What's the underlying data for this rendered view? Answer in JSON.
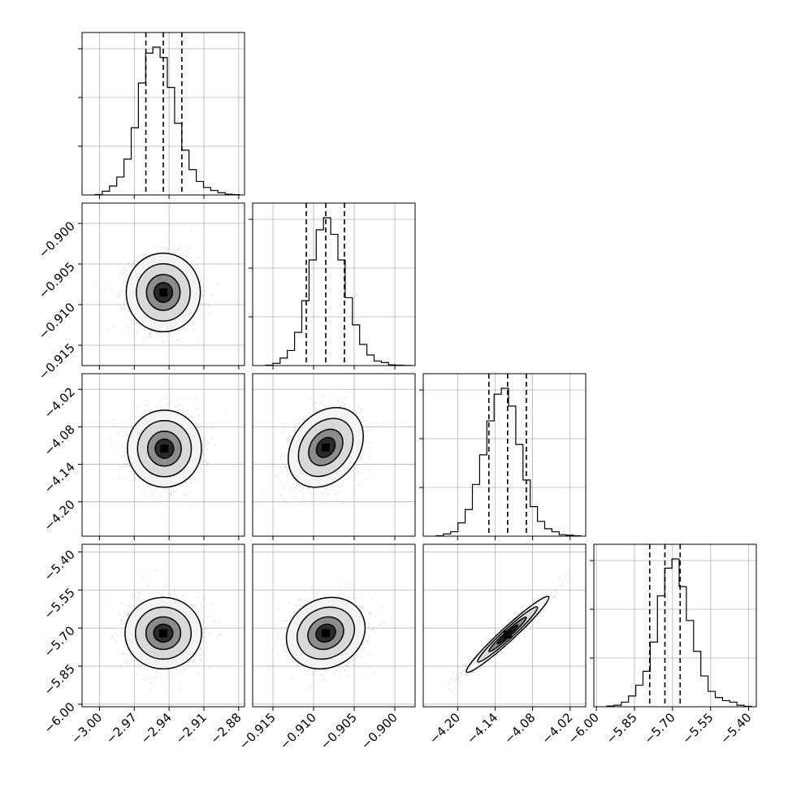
{
  "chart_data": {
    "type": "corner",
    "title": "",
    "grid": true,
    "parameters": [
      {
        "range": [
          -3.015,
          -2.875
        ],
        "ticks": [
          -3.0,
          -2.97,
          -2.94,
          -2.91,
          -2.88
        ],
        "tick_labels": [
          "−3.00",
          "−2.97",
          "−2.94",
          "−2.91",
          "−2.88"
        ],
        "quantiles": [
          -2.96,
          -2.945,
          -2.929
        ],
        "hist_counts": [
          0.3,
          2.5,
          6,
          12,
          24,
          45,
          75,
          95,
          99,
          92,
          72,
          48,
          30,
          17,
          9,
          5,
          3,
          1.5,
          0.5,
          0.2
        ]
      },
      {
        "range": [
          -0.9175,
          -0.8975
        ],
        "ticks": [
          -0.915,
          -0.91,
          -0.905,
          -0.9
        ],
        "tick_labels": [
          "−0.915",
          "−0.910",
          "−0.905",
          "−0.900"
        ],
        "quantiles": [
          -0.9109,
          -0.9085,
          -0.9062
        ],
        "hist_counts": [
          0.3,
          1.5,
          5,
          10,
          22,
          43,
          70,
          90,
          98,
          87,
          70,
          45,
          27,
          14,
          7,
          3,
          2,
          0.5,
          0.3,
          0.1
        ]
      },
      {
        "range": [
          -4.255,
          -3.995
        ],
        "ticks": [
          -4.2,
          -4.14,
          -4.08,
          -4.02
        ],
        "tick_labels": [
          "−4.20",
          "−4.14",
          "−4.08",
          "−4.02"
        ],
        "quantiles": [
          -4.15,
          -4.12,
          -4.09
        ],
        "hist_counts": [
          0.3,
          1.5,
          3,
          9,
          18,
          35,
          55,
          78,
          96,
          100,
          88,
          62,
          38,
          20,
          10,
          5,
          3,
          1,
          0.6,
          0.3
        ]
      },
      {
        "range": [
          -6.01,
          -5.37
        ],
        "ticks": [
          -6.0,
          -5.85,
          -5.7,
          -5.55,
          -5.4
        ],
        "tick_labels": [
          "−6.00",
          "−5.85",
          "−5.70",
          "−5.55",
          "−5.40"
        ],
        "quantiles": [
          -5.79,
          -5.73,
          -5.67
        ],
        "hist_counts": [
          0.5,
          1,
          3,
          7,
          14,
          23,
          42,
          72,
          90,
          96,
          78,
          56,
          36,
          20,
          10,
          6,
          4,
          3,
          1,
          0.3
        ]
      }
    ],
    "panels": [
      {
        "row": 1,
        "col": 0,
        "center": [
          -2.945,
          -0.9085
        ],
        "sigma": [
          0.0145,
          0.0022
        ],
        "corr": 0.0
      },
      {
        "row": 2,
        "col": 0,
        "center": [
          -2.944,
          -4.115
        ],
        "sigma": [
          0.0145,
          0.028
        ],
        "corr": 0.0
      },
      {
        "row": 2,
        "col": 1,
        "center": [
          -0.9085,
          -4.113
        ],
        "sigma": [
          0.0021,
          0.029
        ],
        "corr": 0.28
      },
      {
        "row": 3,
        "col": 0,
        "center": [
          -2.945,
          -5.72
        ],
        "sigma": [
          0.015,
          0.064
        ],
        "corr": 0.0
      },
      {
        "row": 3,
        "col": 1,
        "center": [
          -0.9085,
          -5.72
        ],
        "sigma": [
          0.0022,
          0.064
        ],
        "corr": 0.15
      },
      {
        "row": 3,
        "col": 2,
        "center": [
          -4.12,
          -5.725
        ],
        "sigma": [
          0.03,
          0.068
        ],
        "corr": 0.97
      }
    ]
  }
}
